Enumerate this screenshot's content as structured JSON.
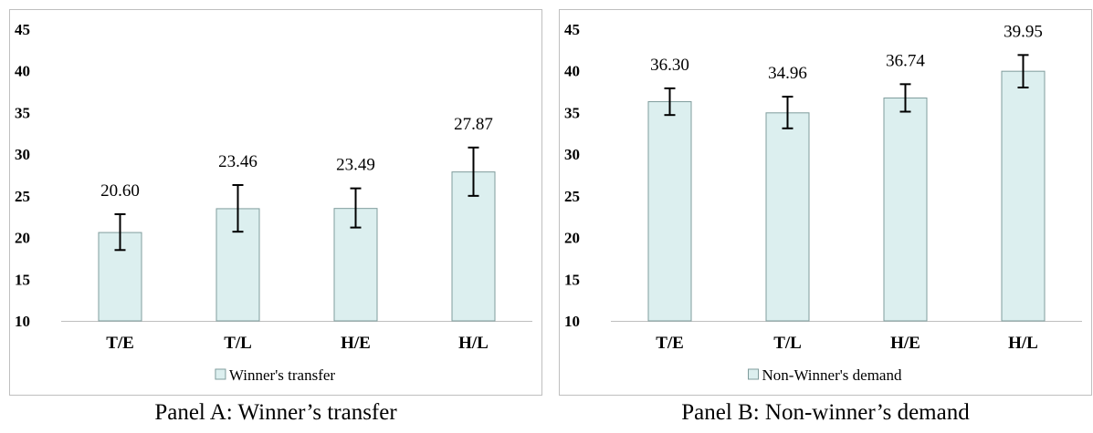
{
  "panels": [
    {
      "caption": "Panel A: Winner’s transfer",
      "chart_data": {
        "type": "bar",
        "categories": [
          "T/E",
          "T/L",
          "H/E",
          "H/L"
        ],
        "series": [
          {
            "name": "Winner's transfer",
            "values": [
              20.6,
              23.46,
              23.49,
              27.87
            ],
            "labels": [
              "20.60",
              "23.46",
              "23.49",
              "27.87"
            ],
            "error_low": [
              18.5,
              20.7,
              21.2,
              25.0
            ],
            "error_high": [
              22.8,
              26.3,
              25.9,
              30.8
            ]
          }
        ],
        "ylim": [
          10,
          45
        ],
        "yticks": [
          10,
          15,
          20,
          25,
          30,
          35,
          40,
          45
        ],
        "legend_position": "bottom",
        "grid": false,
        "bar_color": "#dcefef",
        "bar_edge_color": "#7f9c9c"
      }
    },
    {
      "caption": "Panel B: Non-winner’s demand",
      "chart_data": {
        "type": "bar",
        "categories": [
          "T/E",
          "T/L",
          "H/E",
          "H/L"
        ],
        "series": [
          {
            "name": "Non-Winner's demand",
            "values": [
              36.3,
              34.96,
              36.74,
              39.95
            ],
            "labels": [
              "36.30",
              "34.96",
              "36.74",
              "39.95"
            ],
            "error_low": [
              34.7,
              33.1,
              35.1,
              38.0
            ],
            "error_high": [
              37.9,
              36.9,
              38.4,
              41.9
            ]
          }
        ],
        "ylim": [
          10,
          45
        ],
        "yticks": [
          10,
          15,
          20,
          25,
          30,
          35,
          40,
          45
        ],
        "legend_position": "bottom",
        "grid": false,
        "bar_color": "#dcefef",
        "bar_edge_color": "#7f9c9c"
      }
    }
  ]
}
